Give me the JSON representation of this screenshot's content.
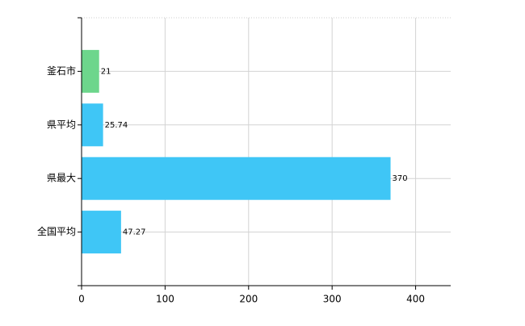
{
  "chart_data": {
    "type": "bar",
    "orientation": "horizontal",
    "categories": [
      "釜石市",
      "県平均",
      "県最大",
      "全国平均"
    ],
    "values": [
      21,
      25.74,
      370,
      47.27
    ],
    "colors": [
      "#6dd68c",
      "#3fc6f6",
      "#3fc6f6",
      "#3fc6f6"
    ],
    "xlim": [
      0,
      442
    ],
    "xticks": [
      0,
      100,
      200,
      300,
      400
    ],
    "grid": true
  }
}
